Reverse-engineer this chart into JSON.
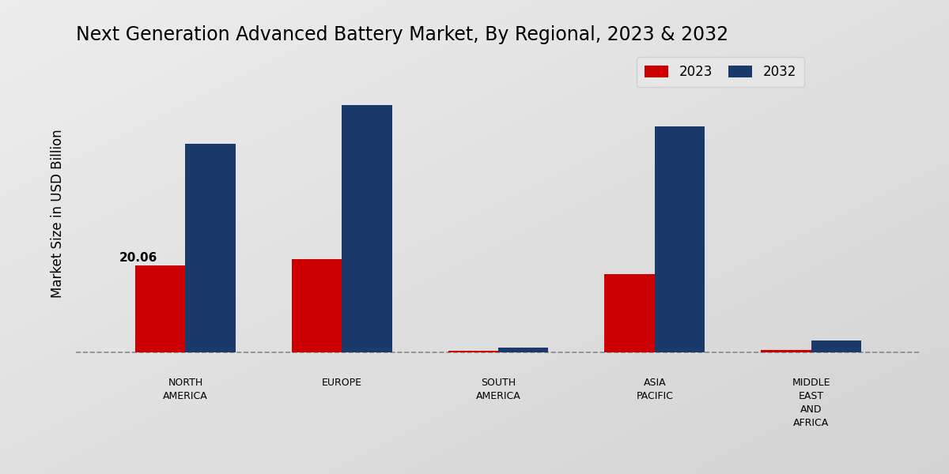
{
  "title": "Next Generation Advanced Battery Market, By Regional, 2023 & 2032",
  "ylabel": "Market Size in USD Billion",
  "categories": [
    "NORTH\nAMERICA",
    "EUROPE",
    "SOUTH\nAMERICA",
    "ASIA\nPACIFIC",
    "MIDDLE\nEAST\nAND\nAFRICA"
  ],
  "values_2023": [
    20.06,
    21.5,
    0.35,
    18.0,
    0.55
  ],
  "values_2032": [
    48.0,
    57.0,
    1.1,
    52.0,
    2.8
  ],
  "label_2023": "2023",
  "label_2032": "2032",
  "color_2023": "#cc0000",
  "color_2032": "#1a3a6b",
  "annotation_value": "20.06",
  "bar_width": 0.32,
  "title_fontsize": 17,
  "axis_label_fontsize": 12,
  "tick_fontsize": 9,
  "legend_fontsize": 12,
  "bottom_stripe_color": "#cc0000",
  "gradient_start": "#f5f5f5",
  "gradient_mid": "#e8e8e8",
  "gradient_end": "#c8c8c8"
}
